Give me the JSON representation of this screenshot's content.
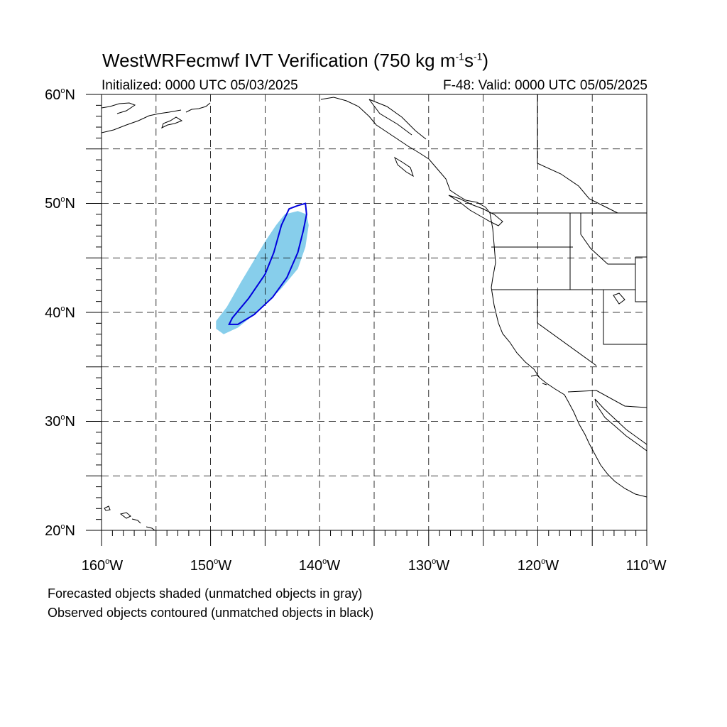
{
  "title": {
    "main": "WestWRFecmwf IVT Verification (750 kg m",
    "sup1": "-1",
    "mid": "s",
    "sup2": "-1",
    "close": ")"
  },
  "initialized": "Initialized: 0000 UTC 05/03/2025",
  "valid": "F-48: Valid: 0000 UTC 05/05/2025",
  "lat_labels": [
    {
      "deg": "60",
      "hem": "N"
    },
    {
      "deg": "50",
      "hem": "N"
    },
    {
      "deg": "40",
      "hem": "N"
    },
    {
      "deg": "30",
      "hem": "N"
    },
    {
      "deg": "20",
      "hem": "N"
    }
  ],
  "lon_labels": [
    {
      "deg": "160",
      "hem": "W"
    },
    {
      "deg": "150",
      "hem": "W"
    },
    {
      "deg": "140",
      "hem": "W"
    },
    {
      "deg": "130",
      "hem": "W"
    },
    {
      "deg": "120",
      "hem": "W"
    },
    {
      "deg": "110",
      "hem": "W"
    }
  ],
  "footnotes": [
    "Forecasted objects shaded (unmatched objects in gray)",
    "Observed objects contoured (unmatched objects in black)"
  ],
  "map": {
    "lon_range": [
      -160,
      -110
    ],
    "lat_range": [
      20,
      60
    ],
    "grid_spacing_deg": 5,
    "forecast_object": {
      "color": "#87ceeb",
      "outline": [
        [
          -149.5,
          38.5
        ],
        [
          -148.8,
          38.0
        ],
        [
          -147.5,
          38.6
        ],
        [
          -145.5,
          40.2
        ],
        [
          -143.5,
          42.2
        ],
        [
          -142.0,
          44.0
        ],
        [
          -141.3,
          46.0
        ],
        [
          -141.0,
          48.0
        ],
        [
          -141.2,
          49.0
        ],
        [
          -142.0,
          49.3
        ],
        [
          -143.2,
          49.0
        ],
        [
          -144.0,
          48.0
        ],
        [
          -145.0,
          46.5
        ],
        [
          -146.0,
          44.8
        ],
        [
          -147.2,
          42.8
        ],
        [
          -148.5,
          40.5
        ],
        [
          -149.5,
          39.2
        ]
      ]
    },
    "observed_object": {
      "color": "#0000dd",
      "outline": [
        [
          -148.3,
          38.9
        ],
        [
          -147.5,
          38.9
        ],
        [
          -146.0,
          39.8
        ],
        [
          -144.3,
          41.4
        ],
        [
          -143.0,
          43.2
        ],
        [
          -142.0,
          45.5
        ],
        [
          -141.5,
          47.5
        ],
        [
          -141.2,
          49.0
        ],
        [
          -141.3,
          50.0
        ],
        [
          -142.0,
          49.8
        ],
        [
          -142.8,
          49.5
        ],
        [
          -143.5,
          48.0
        ],
        [
          -144.2,
          45.5
        ],
        [
          -145.0,
          43.5
        ],
        [
          -146.5,
          41.3
        ],
        [
          -148.0,
          39.5
        ]
      ]
    },
    "coast_color": "#000000",
    "grid_color": "#000000"
  }
}
